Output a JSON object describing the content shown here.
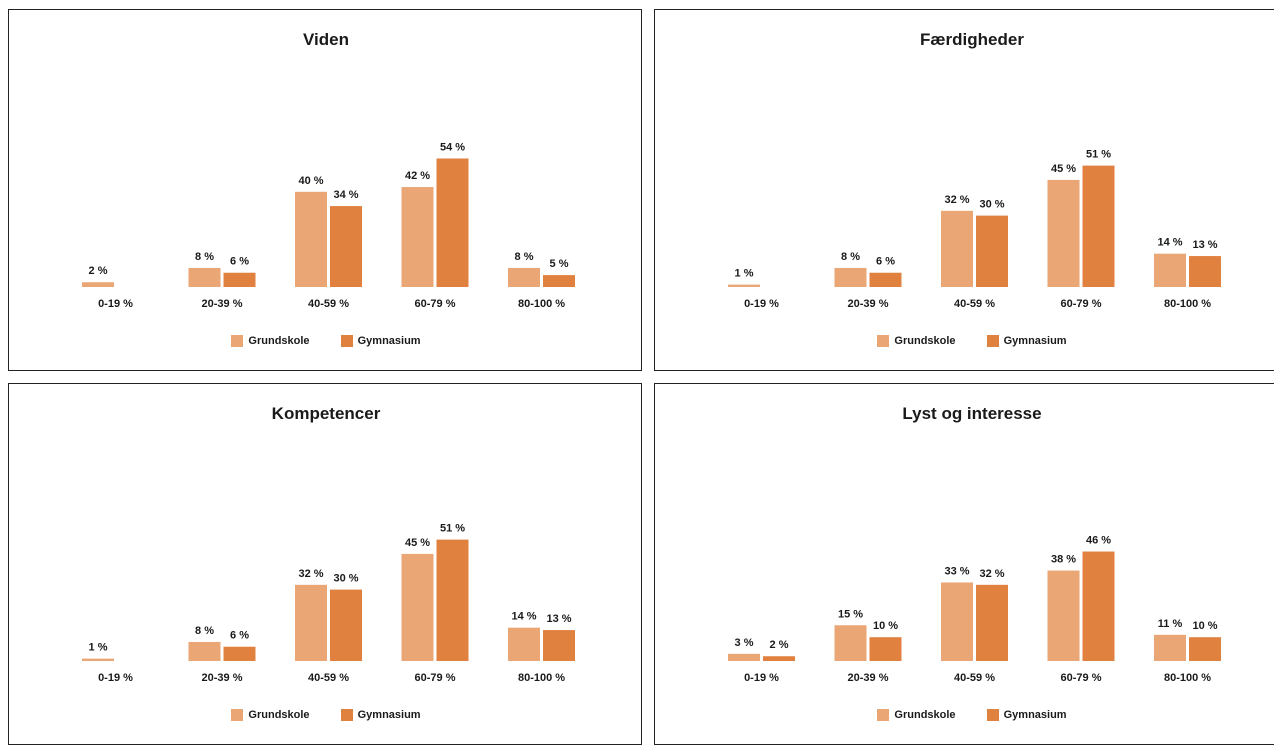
{
  "colors": {
    "grundskole": "#eaa674",
    "gymnasium": "#e0813f"
  },
  "legend": {
    "grundskole": "Grundskole",
    "gymnasium": "Gymnasium"
  },
  "chart_data": [
    {
      "type": "bar",
      "title": "Viden",
      "categories": [
        "0-19 %",
        "20-39 %",
        "40-59 %",
        "60-79 %",
        "80-100 %"
      ],
      "series": [
        {
          "name": "Grundskole",
          "values": [
            2,
            8,
            40,
            42,
            8
          ]
        },
        {
          "name": "Gymnasium",
          "values": [
            null,
            6,
            34,
            54,
            5
          ]
        }
      ],
      "value_labels": [
        [
          "2 %",
          "8 %",
          "40 %",
          "42 %",
          "8 %"
        ],
        [
          "",
          "6 %",
          "34 %",
          "54 %",
          "5 %"
        ]
      ],
      "legend": "bottom",
      "grid": false
    },
    {
      "type": "bar",
      "title": "Færdigheder",
      "categories": [
        "0-19 %",
        "20-39 %",
        "40-59 %",
        "60-79 %",
        "80-100 %"
      ],
      "series": [
        {
          "name": "Grundskole",
          "values": [
            1,
            8,
            32,
            45,
            14
          ]
        },
        {
          "name": "Gymnasium",
          "values": [
            null,
            6,
            30,
            51,
            13
          ]
        }
      ],
      "value_labels": [
        [
          "1 %",
          "8 %",
          "32 %",
          "45 %",
          "14 %"
        ],
        [
          "",
          "6 %",
          "30 %",
          "51 %",
          "13 %"
        ]
      ],
      "legend": "bottom",
      "grid": false
    },
    {
      "type": "bar",
      "title": "Kompetencer",
      "categories": [
        "0-19 %",
        "20-39 %",
        "40-59 %",
        "60-79 %",
        "80-100 %"
      ],
      "series": [
        {
          "name": "Grundskole",
          "values": [
            1,
            8,
            32,
            45,
            14
          ]
        },
        {
          "name": "Gymnasium",
          "values": [
            null,
            6,
            30,
            51,
            13
          ]
        }
      ],
      "value_labels": [
        [
          "1 %",
          "8 %",
          "32 %",
          "45 %",
          "14 %"
        ],
        [
          "",
          "6 %",
          "30 %",
          "51 %",
          "13 %"
        ]
      ],
      "legend": "bottom",
      "grid": false
    },
    {
      "type": "bar",
      "title": "Lyst og interesse",
      "categories": [
        "0-19 %",
        "20-39 %",
        "40-59 %",
        "60-79 %",
        "80-100 %"
      ],
      "series": [
        {
          "name": "Grundskole",
          "values": [
            3,
            15,
            33,
            38,
            11
          ]
        },
        {
          "name": "Gymnasium",
          "values": [
            2,
            10,
            32,
            46,
            10
          ]
        }
      ],
      "value_labels": [
        [
          "3 %",
          "15 %",
          "33 %",
          "38 %",
          "11 %"
        ],
        [
          "2 %",
          "10 %",
          "32 %",
          "46 %",
          "10 %"
        ]
      ],
      "legend": "bottom",
      "grid": false
    }
  ]
}
